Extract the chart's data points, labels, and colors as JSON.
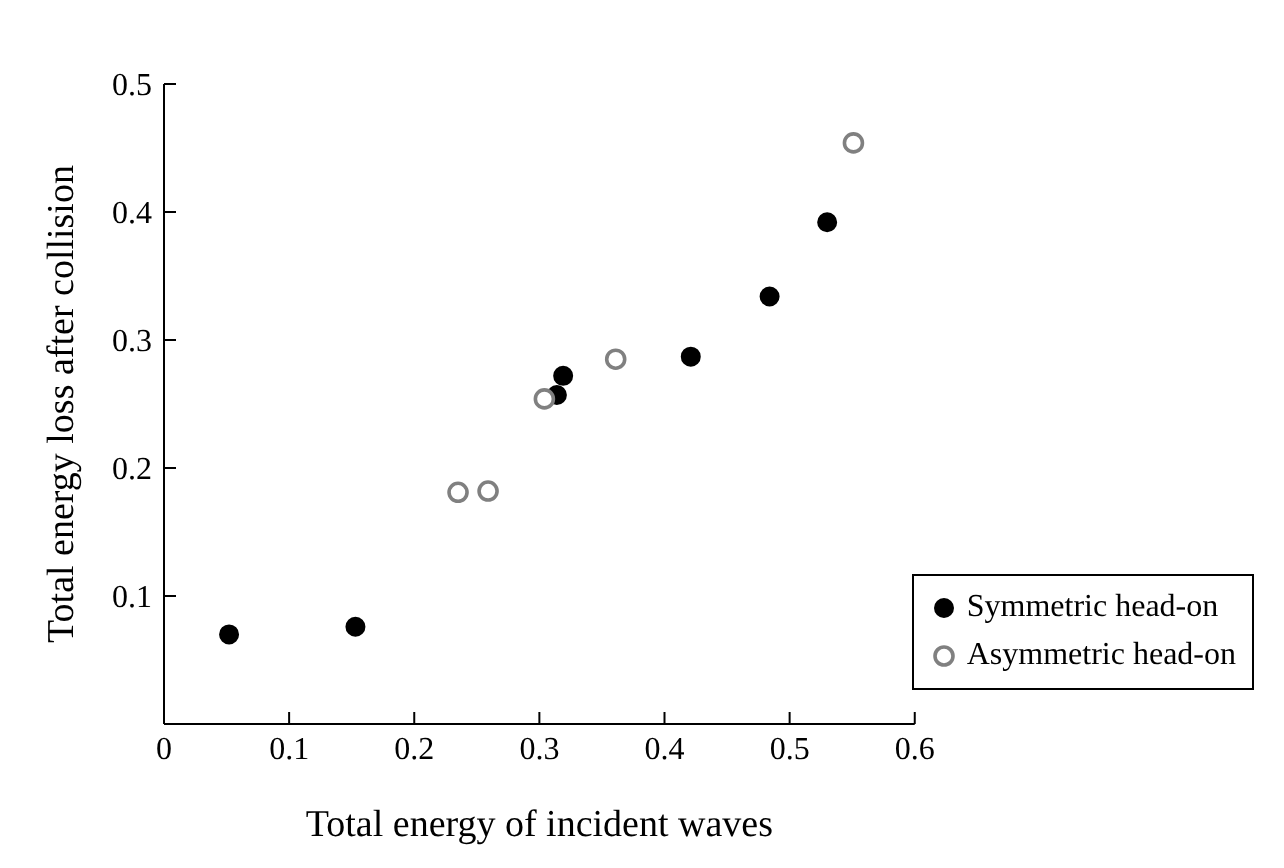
{
  "chart_data": {
    "type": "scatter",
    "xlabel": "Total energy of incident waves",
    "ylabel": "Total energy loss after collision",
    "xlim": [
      0,
      0.6
    ],
    "xticks": [
      0,
      0.1,
      0.2,
      0.3,
      0.4,
      0.5,
      0.6
    ],
    "ylim": [
      0,
      0.5
    ],
    "yticks": [
      0.1,
      0.2,
      0.3,
      0.4,
      0.5
    ],
    "grid": false,
    "legend": "bottom right",
    "marker": "circle",
    "series": [
      {
        "name": "Symmetric head-on",
        "color": "#000000",
        "x": [
          0.052,
          0.153,
          0.314,
          0.319,
          0.421,
          0.484,
          0.53
        ],
        "values": [
          0.07,
          0.076,
          0.257,
          0.272,
          0.287,
          0.334,
          0.392
        ]
      },
      {
        "name": "Asymmetric head-on",
        "color": "#808080",
        "x": [
          0.235,
          0.259,
          0.304,
          0.361,
          0.551
        ],
        "values": [
          0.181,
          0.182,
          0.254,
          0.285,
          0.454
        ]
      }
    ]
  }
}
